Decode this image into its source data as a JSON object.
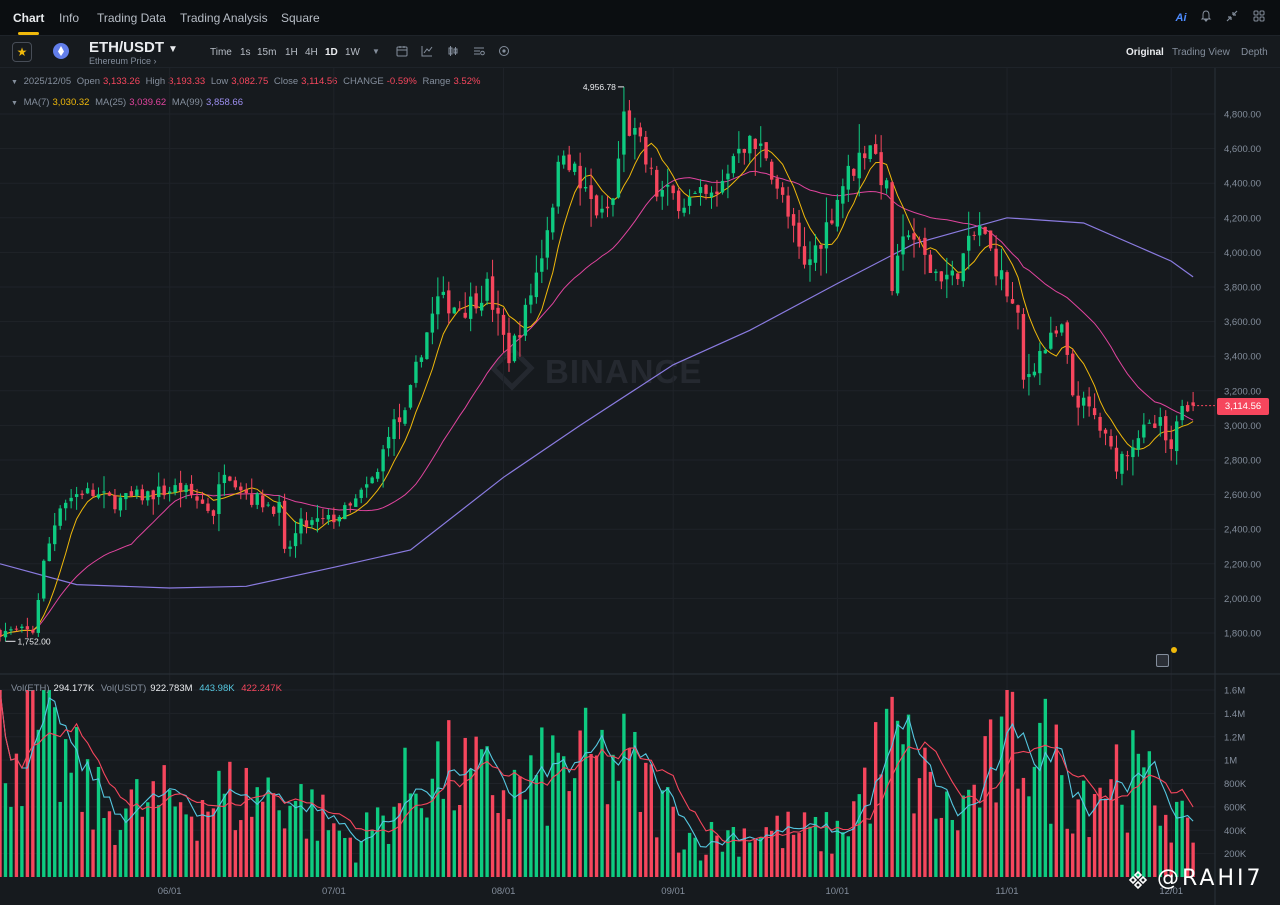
{
  "top_nav": {
    "tabs": [
      "Chart",
      "Info",
      "Trading Data",
      "Trading Analysis",
      "Square"
    ],
    "active": "Chart",
    "right_icons": [
      "ai-icon",
      "bell-icon",
      "collapse-icon",
      "grid-icon"
    ],
    "ai_label": "Ai"
  },
  "header": {
    "pair": "ETH/USDT",
    "subtitle": "Ethereum Price ›",
    "timeframes": [
      "Time",
      "1s",
      "15m",
      "1H",
      "4H",
      "1D",
      "1W"
    ],
    "active_timeframe": "1D",
    "tool_icons": [
      "calendar-icon",
      "indicator-icon",
      "candle-type-icon",
      "settings-list-icon",
      "layers-icon"
    ],
    "views": [
      "Original",
      "Trading View",
      "Depth"
    ],
    "active_view": "Original"
  },
  "ohlc": {
    "date": "2025/12/05",
    "open_label": "Open",
    "open": "3,133.26",
    "high_label": "High",
    "high": "3,193.33",
    "low_label": "Low",
    "low": "3,082.75",
    "close_label": "Close",
    "close": "3,114.56",
    "change_label": "CHANGE",
    "change": "-0.59%",
    "range_label": "Range",
    "range": "3.52%"
  },
  "ma": {
    "ma7_label": "MA(7)",
    "ma7": "3,030.32",
    "ma25_label": "MA(25)",
    "ma25": "3,039.62",
    "ma99_label": "MA(99)",
    "ma99": "3,858.66"
  },
  "volume_info": {
    "vol_eth_label": "Vol(ETH)",
    "vol_eth": "294.177K",
    "vol_usdt_label": "Vol(USDT)",
    "vol_usdt": "922.783M",
    "ma5": "443.98K",
    "ma10": "422.247K"
  },
  "last_price": "3,114.56",
  "watermark": "BINANCE",
  "credit": "@RAHI7",
  "colors": {
    "up": "#0ecb81",
    "down": "#f6465d",
    "ma7": "#f0b90b",
    "ma25": "#e0449e",
    "ma99": "#8a7be0",
    "vol_ma5": "#55c7e0",
    "vol_ma10": "#f6465d"
  },
  "chart_data": {
    "type": "candlestick",
    "interval": "1D",
    "price_axis": {
      "ticks": [
        "4,800.00",
        "4,600.00",
        "4,400.00",
        "4,200.00",
        "4,000.00",
        "3,800.00",
        "3,600.00",
        "3,400.00",
        "3,200.00",
        "3,000.00",
        "2,800.00",
        "2,600.00",
        "2,400.00",
        "2,200.00",
        "2,000.00",
        "1,800.00"
      ],
      "range": [
        1660,
        5100
      ]
    },
    "volume_axis": {
      "ticks": [
        "1.6M",
        "1.4M",
        "1.2M",
        "1M",
        "800K",
        "600K",
        "400K",
        "200K"
      ],
      "range": [
        0,
        1700000
      ]
    },
    "x_ticks": [
      "06/01",
      "07/01",
      "08/01",
      "09/01",
      "10/01",
      "11/01",
      "12/01"
    ],
    "annotations": {
      "high": "4,956.78",
      "low": "1,752.00"
    },
    "close_path": [
      [
        "2025-05-07",
        1810
      ],
      [
        "2025-05-09",
        2200
      ],
      [
        "2025-05-12",
        2550
      ],
      [
        "2025-05-16",
        2620
      ],
      [
        "2025-05-22",
        2560
      ],
      [
        "2025-05-28",
        2600
      ],
      [
        "2025-06-03",
        2640
      ],
      [
        "2025-06-09",
        2500
      ],
      [
        "2025-06-11",
        2760
      ],
      [
        "2025-06-16",
        2580
      ],
      [
        "2025-06-21",
        2520
      ],
      [
        "2025-06-22",
        2250
      ],
      [
        "2025-06-25",
        2420
      ],
      [
        "2025-06-30",
        2450
      ],
      [
        "2025-07-04",
        2520
      ],
      [
        "2025-07-09",
        2720
      ],
      [
        "2025-07-11",
        2980
      ],
      [
        "2025-07-14",
        3050
      ],
      [
        "2025-07-17",
        3450
      ],
      [
        "2025-07-20",
        3720
      ],
      [
        "2025-07-25",
        3680
      ],
      [
        "2025-07-29",
        3800
      ],
      [
        "2025-08-02",
        3400
      ],
      [
        "2025-08-05",
        3650
      ],
      [
        "2025-08-08",
        4000
      ],
      [
        "2025-08-12",
        4620
      ],
      [
        "2025-08-15",
        4380
      ],
      [
        "2025-08-19",
        4200
      ],
      [
        "2025-08-21",
        4300
      ],
      [
        "2025-08-23",
        4780
      ],
      [
        "2025-08-26",
        4600
      ],
      [
        "2025-08-29",
        4350
      ],
      [
        "2025-09-03",
        4300
      ],
      [
        "2025-09-09",
        4310
      ],
      [
        "2025-09-13",
        4650
      ],
      [
        "2025-09-18",
        4580
      ],
      [
        "2025-09-22",
        4200
      ],
      [
        "2025-09-25",
        3900
      ],
      [
        "2025-09-29",
        4150
      ],
      [
        "2025-10-02",
        4400
      ],
      [
        "2025-10-07",
        4650
      ],
      [
        "2025-10-10",
        4350
      ],
      [
        "2025-10-11",
        3800
      ],
      [
        "2025-10-14",
        4150
      ],
      [
        "2025-10-18",
        3900
      ],
      [
        "2025-10-22",
        3850
      ],
      [
        "2025-10-27",
        4150
      ],
      [
        "2025-10-31",
        3850
      ],
      [
        "2025-11-03",
        3600
      ],
      [
        "2025-11-04",
        3250
      ],
      [
        "2025-11-07",
        3420
      ],
      [
        "2025-11-11",
        3550
      ],
      [
        "2025-11-13",
        3180
      ],
      [
        "2025-11-17",
        3050
      ],
      [
        "2025-11-21",
        2780
      ],
      [
        "2025-11-25",
        2950
      ],
      [
        "2025-11-29",
        3000
      ],
      [
        "2025-12-01",
        2820
      ],
      [
        "2025-12-03",
        3150
      ],
      [
        "2025-12-05",
        3114.56
      ]
    ],
    "ma99_path": [
      [
        "2025-05-01",
        2200
      ],
      [
        "2025-05-15",
        2080
      ],
      [
        "2025-06-01",
        2060
      ],
      [
        "2025-06-15",
        2070
      ],
      [
        "2025-07-01",
        2180
      ],
      [
        "2025-07-15",
        2280
      ],
      [
        "2025-08-01",
        2700
      ],
      [
        "2025-08-15",
        3000
      ],
      [
        "2025-09-01",
        3350
      ],
      [
        "2025-09-15",
        3550
      ],
      [
        "2025-10-01",
        3820
      ],
      [
        "2025-10-15",
        4050
      ],
      [
        "2025-11-01",
        4200
      ],
      [
        "2025-11-15",
        4170
      ],
      [
        "2025-12-01",
        3950
      ],
      [
        "2025-12-05",
        3858.66
      ]
    ],
    "volume_profile_eth": [
      [
        "2025-05-08",
        1500000
      ],
      [
        "2025-05-20",
        700000
      ],
      [
        "2025-06-10",
        850000
      ],
      [
        "2025-06-22",
        900000
      ],
      [
        "2025-07-05",
        350000
      ],
      [
        "2025-07-18",
        1150000
      ],
      [
        "2025-08-03",
        900000
      ],
      [
        "2025-08-12",
        1150000
      ],
      [
        "2025-08-23",
        1200000
      ],
      [
        "2025-09-05",
        380000
      ],
      [
        "2025-09-15",
        500000
      ],
      [
        "2025-10-01",
        450000
      ],
      [
        "2025-10-11",
        1450000
      ],
      [
        "2025-10-22",
        600000
      ],
      [
        "2025-11-04",
        1550000
      ],
      [
        "2025-11-14",
        900000
      ],
      [
        "2025-11-21",
        1150000
      ],
      [
        "2025-12-01",
        750000
      ],
      [
        "2025-12-05",
        294177
      ]
    ]
  }
}
